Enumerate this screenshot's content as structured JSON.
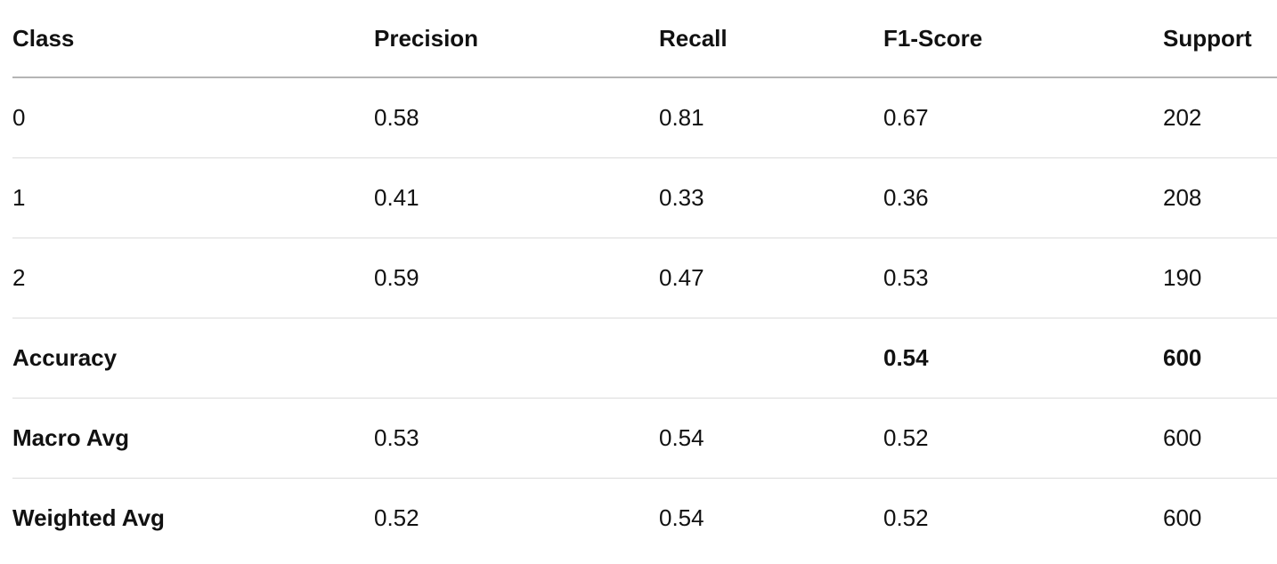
{
  "table": {
    "header": [
      "Class",
      "Precision",
      "Recall",
      "F1-Score",
      "Support"
    ],
    "rows": [
      [
        "0",
        "0.58",
        "0.81",
        "0.67",
        "202"
      ],
      [
        "1",
        "0.41",
        "0.33",
        "0.36",
        "208"
      ],
      [
        "2",
        "0.59",
        "0.47",
        "0.53",
        "190"
      ],
      [
        "Accuracy",
        null,
        null,
        "0.54",
        "600"
      ],
      [
        "Macro Avg",
        "0.53",
        "0.54",
        "0.52",
        "600"
      ],
      [
        "Weighted Avg",
        "0.52",
        "0.54",
        "0.52",
        "600"
      ]
    ]
  }
}
